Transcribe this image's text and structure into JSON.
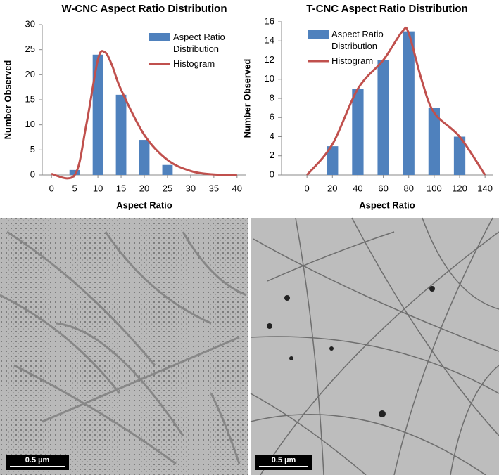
{
  "chart_data": [
    {
      "type": "bar",
      "title": "W-CNC Aspect Ratio Distribution",
      "x_label": "Aspect Ratio",
      "y_label": "Number Observed",
      "series": [
        {
          "name": "Aspect Ratio Distribution",
          "type": "bar",
          "color": "#4f81bd",
          "x": [
            5,
            10,
            15,
            20,
            25
          ],
          "values": [
            1,
            24,
            16,
            7,
            2
          ]
        },
        {
          "name": "Histogram",
          "type": "line",
          "color": "#c0504d",
          "x": [
            0,
            5,
            7.5,
            10,
            11.5,
            13,
            15,
            20,
            25,
            30,
            35,
            40
          ],
          "values": [
            0.2,
            0,
            10,
            23,
            24.5,
            22,
            17,
            8,
            3,
            0.8,
            0.1,
            0
          ]
        }
      ],
      "xlim": [
        -2,
        42
      ],
      "xticks": [
        0,
        5,
        10,
        15,
        20,
        25,
        30,
        35,
        40
      ],
      "ylim": [
        0,
        30
      ],
      "yticks": [
        0,
        5,
        10,
        15,
        20,
        25,
        30
      ],
      "legend": "upper right",
      "grid": false
    },
    {
      "type": "bar",
      "title": "T-CNC Aspect Ratio Distribution",
      "x_label": "Aspect Ratio",
      "y_label": "Number Observed",
      "series": [
        {
          "name": "Aspect Ratio Distribution",
          "type": "bar",
          "color": "#4f81bd",
          "x": [
            20,
            40,
            60,
            80,
            100,
            120
          ],
          "values": [
            3,
            9,
            12,
            15,
            7,
            4
          ]
        },
        {
          "name": "Histogram",
          "type": "line",
          "color": "#c0504d",
          "x": [
            0,
            20,
            40,
            60,
            75,
            80,
            90,
            100,
            120,
            140
          ],
          "values": [
            0,
            3.2,
            9,
            12,
            15,
            14.8,
            10,
            6.5,
            4,
            0
          ]
        }
      ],
      "xlim": [
        -20,
        146
      ],
      "xticks": [
        0,
        20,
        40,
        60,
        80,
        100,
        120,
        140
      ],
      "ylim": [
        0,
        16
      ],
      "yticks": [
        0,
        2,
        4,
        6,
        8,
        10,
        12,
        14,
        16
      ],
      "legend": "upper left",
      "grid": false
    }
  ],
  "images": [
    {
      "scale_bar": "0.5 µm"
    },
    {
      "scale_bar": "0.5 µm"
    }
  ]
}
